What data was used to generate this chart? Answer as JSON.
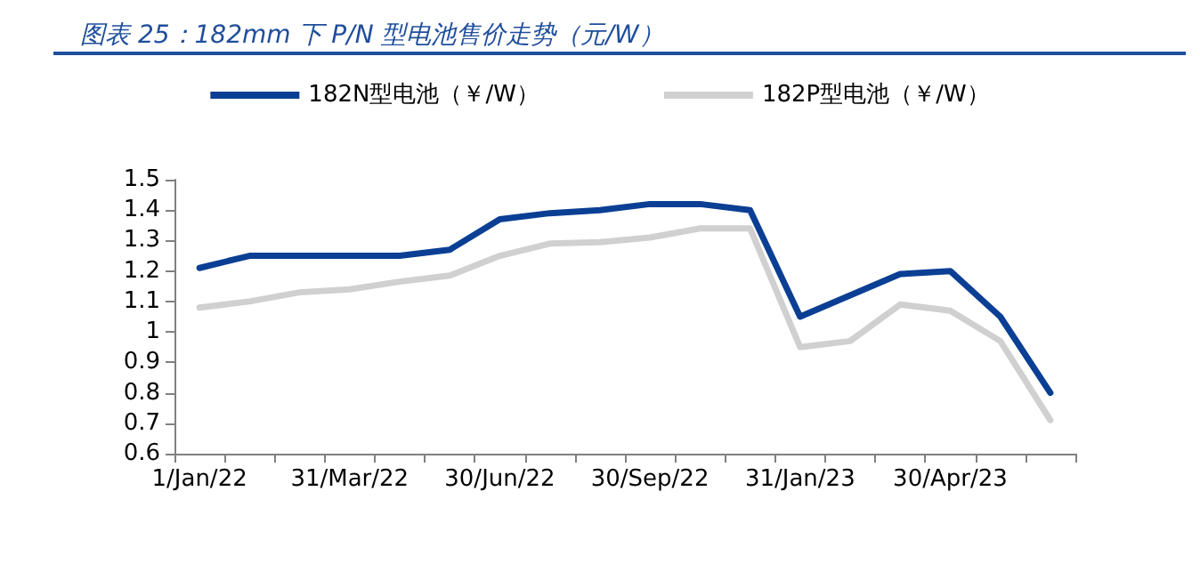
{
  "chart_data": {
    "type": "line",
    "title": "图表 25：182mm 下 P/N 型电池售价走势（元/W）",
    "categories": [
      "1/Jan/22",
      null,
      null,
      "31/Mar/22",
      null,
      null,
      "30/Jun/22",
      null,
      null,
      "30/Sep/22",
      null,
      null,
      "31/Jan/23",
      null,
      null,
      "30/Apr/23",
      null,
      null
    ],
    "series": [
      {
        "name": "182N型电池（￥/W）",
        "color": "#0b3f94",
        "values": [
          1.21,
          1.25,
          1.25,
          1.25,
          1.25,
          1.27,
          1.37,
          1.39,
          1.4,
          1.42,
          1.42,
          1.4,
          1.05,
          1.12,
          1.19,
          1.2,
          1.05,
          0.8
        ]
      },
      {
        "name": "182P型电池（￥/W）",
        "color": "#d0d0d0",
        "values": [
          1.08,
          1.1,
          1.13,
          1.14,
          1.165,
          1.185,
          1.25,
          1.29,
          1.295,
          1.31,
          1.34,
          1.34,
          0.95,
          0.97,
          1.09,
          1.07,
          0.97,
          0.71
        ]
      }
    ],
    "ylim": [
      0.6,
      1.5
    ],
    "yticks": [
      0.6,
      0.7,
      0.8,
      0.9,
      1,
      1.1,
      1.2,
      1.3,
      1.4,
      1.5
    ],
    "grid": false,
    "legend": "top",
    "marker": "none",
    "line_style": "solid"
  }
}
